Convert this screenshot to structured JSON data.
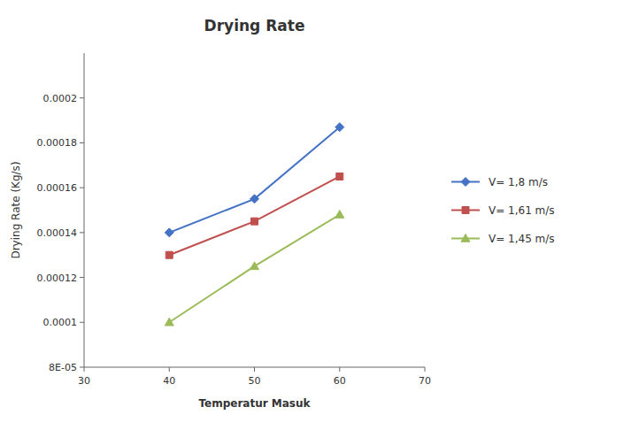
{
  "chart_data": {
    "type": "line",
    "title": "Drying Rate",
    "x_label": "Temperatur Masuk",
    "y_label": "Drying Rate (Kg/s)",
    "x": [
      40,
      50,
      60
    ],
    "series": [
      {
        "name": "V= 1,8 m/s",
        "color": "#4472C4",
        "marker": "diamond",
        "values": [
          0.00014,
          0.000155,
          0.000187
        ]
      },
      {
        "name": "V= 1,61 m/s",
        "color": "#C0504D",
        "marker": "square",
        "values": [
          0.00013,
          0.000145,
          0.000165
        ]
      },
      {
        "name": "V= 1,45 m/s",
        "color": "#9BBB59",
        "marker": "triangle",
        "values": [
          0.0001,
          0.000125,
          0.000148
        ]
      }
    ],
    "xlim": [
      30,
      70
    ],
    "xticks": [
      30,
      40,
      50,
      60,
      70
    ],
    "ylim": [
      8e-05,
      0.00022
    ],
    "yticks": [
      {
        "value": 8e-05,
        "label": "8E-05"
      },
      0.0001,
      0.00012,
      0.00014,
      0.00016,
      0.00018,
      0.0002
    ],
    "grid": false,
    "legend": "right"
  }
}
